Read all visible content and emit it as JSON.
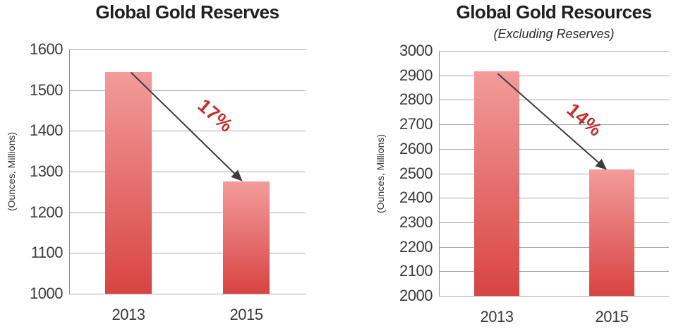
{
  "colors": {
    "background": "#ffffff",
    "bar_gradient_top": "#F29C9B",
    "bar_gradient_bottom": "#D84442",
    "gridline": "#A8A8A8",
    "axis_line": "#8E8E8E",
    "tick_text": "#3A3A3A",
    "title_text": "#1F1F1F",
    "annotation_red": "#C03030",
    "arrow": "#3C3C3C"
  },
  "chart_data": [
    {
      "type": "bar",
      "title": "Global Gold Reserves",
      "subtitle": "",
      "ylabel": "(Ounces, Millions)",
      "xlabel": "",
      "categories": [
        "2013",
        "2015"
      ],
      "values": [
        1545,
        1275
      ],
      "ylim": [
        1000,
        1600
      ],
      "yticks": [
        1600,
        1500,
        1400,
        1300,
        1200,
        1100,
        1000
      ],
      "grid": true,
      "legend": "none",
      "annotation": {
        "text": "17%",
        "rotation_deg": 41,
        "meaning": "percent decline from 2013 to 2015"
      }
    },
    {
      "type": "bar",
      "title": "Global Gold Resources",
      "subtitle": "(Excluding Reserves)",
      "ylabel": "(Ounces, Millions)",
      "xlabel": "",
      "categories": [
        "2013",
        "2015"
      ],
      "values": [
        2915,
        2515
      ],
      "ylim": [
        2000,
        3000
      ],
      "yticks": [
        3000,
        2900,
        2800,
        2700,
        2600,
        2500,
        2400,
        2300,
        2200,
        2100,
        2000
      ],
      "grid": true,
      "legend": "none",
      "annotation": {
        "text": "14%",
        "rotation_deg": 41,
        "meaning": "percent decline from 2013 to 2015"
      }
    }
  ]
}
